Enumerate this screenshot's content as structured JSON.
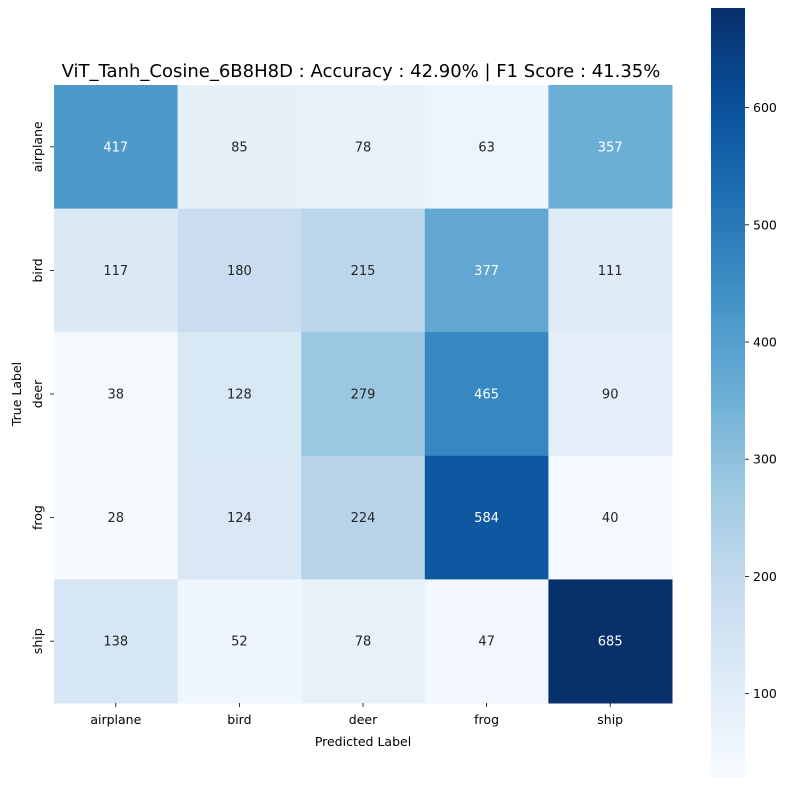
{
  "chart_data": {
    "type": "heatmap",
    "title": "ViT_Tanh_Cosine_6B8H8D : Accuracy : 42.90% | F1 Score : 41.35%",
    "xlabel": "Predicted Label",
    "ylabel": "True Label",
    "x_categories": [
      "airplane",
      "bird",
      "deer",
      "frog",
      "ship"
    ],
    "y_categories": [
      "airplane",
      "bird",
      "deer",
      "frog",
      "ship"
    ],
    "values": [
      [
        417,
        85,
        78,
        63,
        357
      ],
      [
        117,
        180,
        215,
        377,
        111
      ],
      [
        38,
        128,
        279,
        465,
        90
      ],
      [
        28,
        124,
        224,
        584,
        40
      ],
      [
        138,
        52,
        78,
        47,
        685
      ]
    ],
    "colorbar": {
      "colormap": "Blues",
      "vmin": 28,
      "vmax": 685,
      "ticks": [
        100,
        200,
        300,
        400,
        500,
        600
      ]
    },
    "annotation_threshold": 356.5,
    "text_color_light": "#ffffff",
    "text_color_dark": "#262626"
  }
}
